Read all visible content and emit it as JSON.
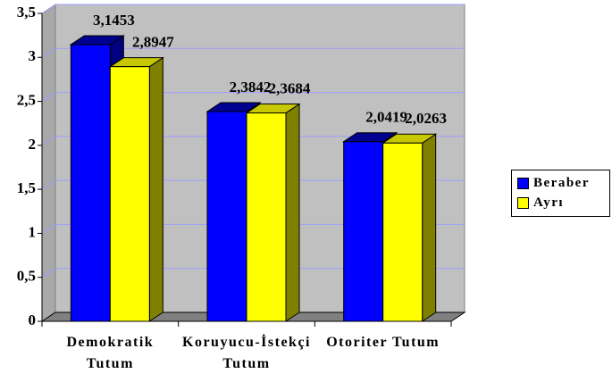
{
  "chart_data": {
    "type": "bar3d",
    "categories": [
      "Demokratik Tutum",
      "Koruyucu-İstekçi Tutum",
      "Otoriter Tutum"
    ],
    "series": [
      {
        "name": "Beraber",
        "color": "#0000ff",
        "values": [
          3.1453,
          2.3842,
          2.0419
        ],
        "value_labels": [
          "3,1453",
          "2,3842",
          "2,0419"
        ]
      },
      {
        "name": "Ayrı",
        "color": "#ffff00",
        "values": [
          2.8947,
          2.3684,
          2.0263
        ],
        "value_labels": [
          "2,8947",
          "2,3684",
          "2,0263"
        ]
      }
    ],
    "ylim": [
      0,
      3.5
    ],
    "yticks": [
      0,
      {
        "value": 0.5,
        "label": "0,5"
      },
      1,
      {
        "value": 1.5,
        "label": "1,5"
      },
      2,
      {
        "value": 2.5,
        "label": "2,5"
      },
      3,
      {
        "value": 3.5,
        "label": "3,5"
      }
    ],
    "grid": true,
    "legend": "right"
  }
}
